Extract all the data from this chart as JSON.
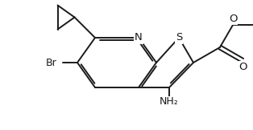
{
  "bg_color": "#ffffff",
  "line_color": "#1a1a1a",
  "line_width": 1.4,
  "figsize": [
    3.14,
    1.62
  ],
  "dpi": 100,
  "atoms": {
    "N_label": "N",
    "S_label": "S",
    "Br_label": "Br",
    "NH2_label": "NH₂",
    "O_label": "O"
  }
}
